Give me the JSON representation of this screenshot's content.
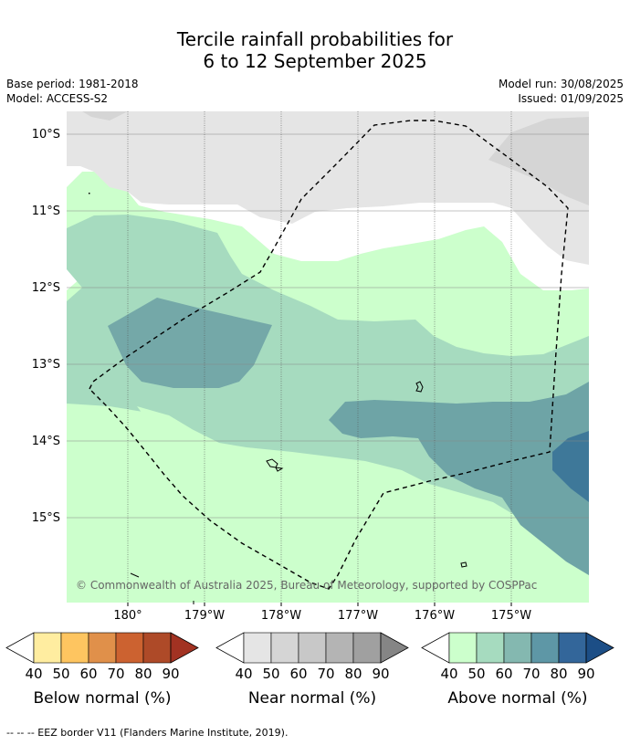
{
  "title_line1": "Tercile rainfall probabilities for",
  "title_line2": "6 to 12 September 2025",
  "base_period": "Base period: 1981-2018",
  "model": "Model: ACCESS-S2",
  "model_run": "Model run: 30/08/2025",
  "issued": "Issued: 01/09/2025",
  "copyright": "© Commonwealth of Australia 2025, Bureau of Meteorology, supported by COSPPac",
  "lat_labels": [
    "10°S",
    "11°S",
    "12°S",
    "13°S",
    "14°S",
    "15°S"
  ],
  "lon_labels": [
    "180°",
    "179°W",
    "178°W",
    "177°W",
    "176°W",
    "175°W"
  ],
  "legends": [
    {
      "label": "Below normal (%)",
      "ticks": [
        "40",
        "50",
        "60",
        "70",
        "80",
        "90"
      ],
      "colors": [
        "#ffeda0",
        "#fec560",
        "#e0904a",
        "#cc6230",
        "#ae4a28",
        "#a23222"
      ]
    },
    {
      "label": "Near normal (%)",
      "ticks": [
        "40",
        "50",
        "60",
        "70",
        "80",
        "90"
      ],
      "colors": [
        "#e5e5e5",
        "#d5d5d5",
        "#c8c8c8",
        "#b4b4b4",
        "#a0a0a0",
        "#858585"
      ]
    },
    {
      "label": "Above normal (%)",
      "ticks": [
        "40",
        "50",
        "60",
        "70",
        "80",
        "90"
      ],
      "colors": [
        "#ccffcc",
        "#a6dbbf",
        "#84b8b0",
        "#5e97a6",
        "#33669a",
        "#1c4e86"
      ]
    }
  ],
  "footer": "--  --  -- EEZ border V11 (Flanders Marine Institute, 2019)."
}
